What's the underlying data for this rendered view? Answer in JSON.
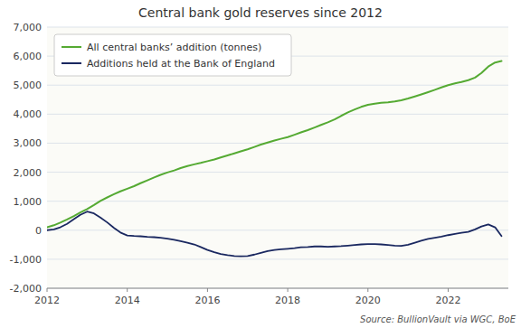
{
  "chart_data": {
    "type": "line",
    "title": "Central bank gold reserves since 2012",
    "annotation": "Source: BullionVault via WGC, BoE",
    "x": [
      2012.0,
      2012.17,
      2012.33,
      2012.5,
      2012.67,
      2012.83,
      2013.0,
      2013.17,
      2013.33,
      2013.5,
      2013.67,
      2013.83,
      2014.0,
      2014.17,
      2014.33,
      2014.5,
      2014.67,
      2014.83,
      2015.0,
      2015.17,
      2015.33,
      2015.5,
      2015.67,
      2015.83,
      2016.0,
      2016.17,
      2016.33,
      2016.5,
      2016.67,
      2016.83,
      2017.0,
      2017.17,
      2017.33,
      2017.5,
      2017.67,
      2017.83,
      2018.0,
      2018.17,
      2018.33,
      2018.5,
      2018.67,
      2018.83,
      2019.0,
      2019.17,
      2019.33,
      2019.5,
      2019.67,
      2019.83,
      2020.0,
      2020.17,
      2020.33,
      2020.5,
      2020.67,
      2020.83,
      2021.0,
      2021.17,
      2021.33,
      2021.5,
      2021.67,
      2021.83,
      2022.0,
      2022.17,
      2022.33,
      2022.5,
      2022.67,
      2022.83,
      2023.0,
      2023.17,
      2023.33
    ],
    "series": [
      {
        "name": "All central banks’ addition (tonnes)",
        "color": "#55AA33",
        "values": [
          100,
          170,
          260,
          370,
          490,
          610,
          730,
          870,
          1010,
          1130,
          1240,
          1340,
          1430,
          1520,
          1620,
          1720,
          1820,
          1910,
          1990,
          2060,
          2140,
          2210,
          2270,
          2320,
          2380,
          2440,
          2510,
          2580,
          2650,
          2720,
          2790,
          2870,
          2950,
          3020,
          3090,
          3150,
          3210,
          3290,
          3370,
          3450,
          3540,
          3630,
          3720,
          3820,
          3940,
          4060,
          4160,
          4250,
          4320,
          4360,
          4390,
          4410,
          4440,
          4480,
          4540,
          4610,
          4680,
          4760,
          4840,
          4920,
          5000,
          5060,
          5110,
          5170,
          5260,
          5420,
          5640,
          5780,
          5830
        ]
      },
      {
        "name": "Additions held at the Bank of England",
        "color": "#1A2860",
        "values": [
          0,
          30,
          100,
          220,
          380,
          530,
          640,
          580,
          440,
          270,
          80,
          -80,
          -180,
          -200,
          -210,
          -230,
          -240,
          -260,
          -290,
          -330,
          -380,
          -430,
          -490,
          -580,
          -680,
          -760,
          -820,
          -860,
          -890,
          -900,
          -890,
          -840,
          -780,
          -720,
          -680,
          -660,
          -640,
          -620,
          -590,
          -580,
          -560,
          -560,
          -570,
          -560,
          -550,
          -530,
          -510,
          -490,
          -480,
          -480,
          -490,
          -510,
          -530,
          -540,
          -500,
          -430,
          -360,
          -300,
          -260,
          -220,
          -170,
          -130,
          -90,
          -60,
          30,
          130,
          200,
          100,
          -200
        ]
      }
    ],
    "xlim": [
      2012.0,
      2023.5
    ],
    "xticks": [
      2012,
      2014,
      2016,
      2018,
      2020,
      2022
    ],
    "ylim": [
      -2000,
      7000
    ],
    "yticks": [
      {
        "value": -2000,
        "label": "-2,000"
      },
      {
        "value": -1000,
        "label": "-1,000"
      },
      0,
      {
        "value": 1000,
        "label": "1,000"
      },
      {
        "value": 2000,
        "label": "2,000"
      },
      {
        "value": 3000,
        "label": "3,000"
      },
      {
        "value": 4000,
        "label": "4,000"
      },
      {
        "value": 5000,
        "label": "5,000"
      },
      {
        "value": 6000,
        "label": "6,000"
      },
      {
        "value": 7000,
        "label": "7,000"
      }
    ],
    "grid": true,
    "legend": "upper-left"
  }
}
